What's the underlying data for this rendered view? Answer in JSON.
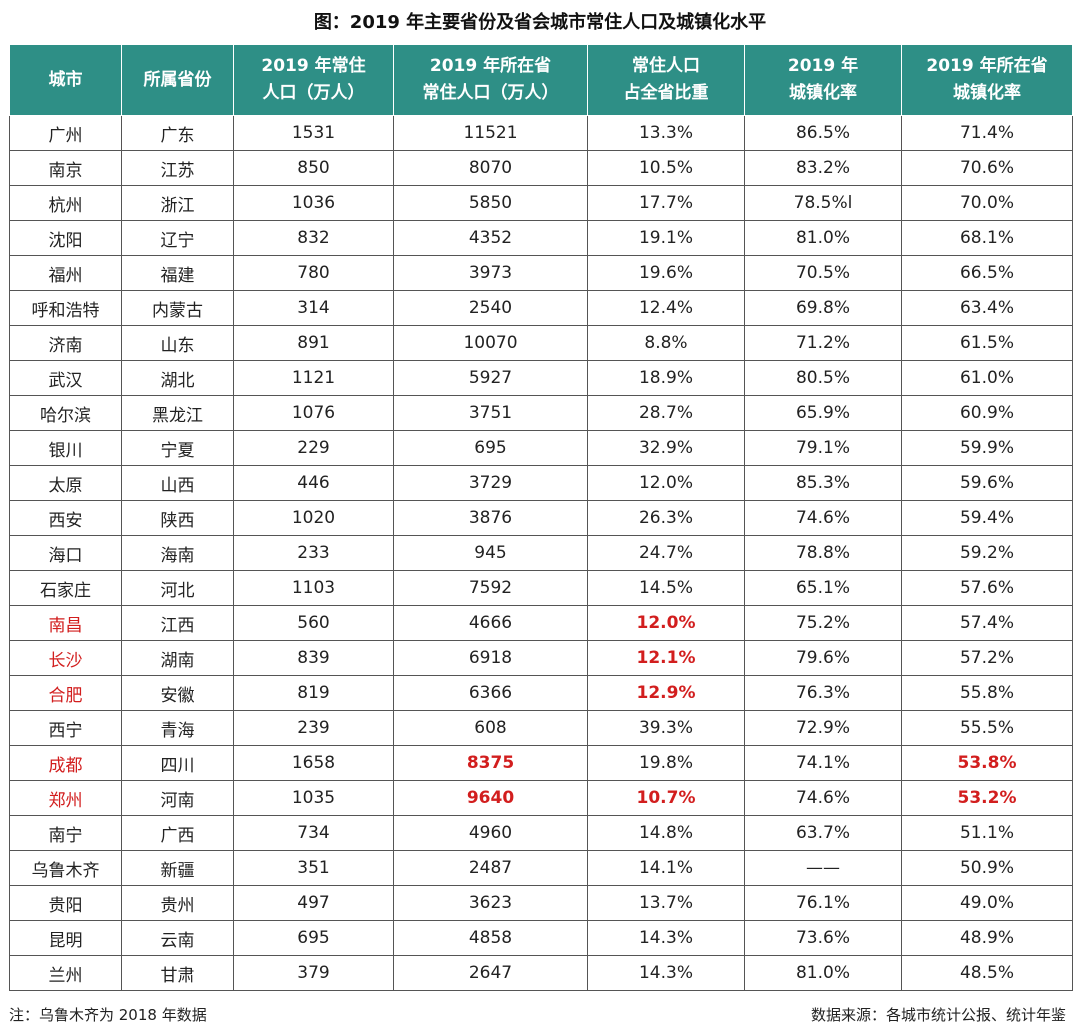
{
  "title": "图：2019 年主要省份及省会城市常住人口及城镇化水平",
  "headers": [
    {
      "l1": "城市",
      "l2": ""
    },
    {
      "l1": "所属省份",
      "l2": ""
    },
    {
      "l1": "2019 年常住",
      "l2": "人口（万人）"
    },
    {
      "l1": "2019 年所在省",
      "l2": "常住人口（万人）"
    },
    {
      "l1": "常住人口",
      "l2": "占全省比重"
    },
    {
      "l1": "2019 年",
      "l2": "城镇化率"
    },
    {
      "l1": "2019 年所在省",
      "l2": "城镇化率"
    }
  ],
  "highlight_color": "#d21e1e",
  "header_color": "#2e8f86",
  "rows": [
    {
      "cells": [
        "广州",
        "广东",
        "1531",
        "11521",
        "13.3%",
        "86.5%",
        "71.4%"
      ]
    },
    {
      "cells": [
        "南京",
        "江苏",
        "850",
        "8070",
        "10.5%",
        "83.2%",
        "70.6%"
      ]
    },
    {
      "cells": [
        "杭州",
        "浙江",
        "1036",
        "5850",
        "17.7%",
        "78.5%l",
        "70.0%"
      ]
    },
    {
      "cells": [
        "沈阳",
        "辽宁",
        "832",
        "4352",
        "19.1%",
        "81.0%",
        "68.1%"
      ]
    },
    {
      "cells": [
        "福州",
        "福建",
        "780",
        "3973",
        "19.6%",
        "70.5%",
        "66.5%"
      ]
    },
    {
      "cells": [
        "呼和浩特",
        "内蒙古",
        "314",
        "2540",
        "12.4%",
        "69.8%",
        "63.4%"
      ]
    },
    {
      "cells": [
        "济南",
        "山东",
        "891",
        "10070",
        "8.8%",
        "71.2%",
        "61.5%"
      ]
    },
    {
      "cells": [
        "武汉",
        "湖北",
        "1121",
        "5927",
        "18.9%",
        "80.5%",
        "61.0%"
      ]
    },
    {
      "cells": [
        "哈尔滨",
        "黑龙江",
        "1076",
        "3751",
        "28.7%",
        "65.9%",
        "60.9%"
      ]
    },
    {
      "cells": [
        "银川",
        "宁夏",
        "229",
        "695",
        "32.9%",
        "79.1%",
        "59.9%"
      ]
    },
    {
      "cells": [
        "太原",
        "山西",
        "446",
        "3729",
        "12.0%",
        "85.3%",
        "59.6%"
      ]
    },
    {
      "cells": [
        "西安",
        "陕西",
        "1020",
        "3876",
        "26.3%",
        "74.6%",
        "59.4%"
      ]
    },
    {
      "cells": [
        "海口",
        "海南",
        "233",
        "945",
        "24.7%",
        "78.8%",
        "59.2%"
      ]
    },
    {
      "cells": [
        "石家庄",
        "河北",
        "1103",
        "7592",
        "14.5%",
        "65.1%",
        "57.6%"
      ]
    },
    {
      "cells": [
        "南昌",
        "江西",
        "560",
        "4666",
        "12.0%",
        "75.2%",
        "57.4%"
      ],
      "red": [
        0
      ],
      "redbold": [
        4
      ]
    },
    {
      "cells": [
        "长沙",
        "湖南",
        "839",
        "6918",
        "12.1%",
        "79.6%",
        "57.2%"
      ],
      "red": [
        0
      ],
      "redbold": [
        4
      ]
    },
    {
      "cells": [
        "合肥",
        "安徽",
        "819",
        "6366",
        "12.9%",
        "76.3%",
        "55.8%"
      ],
      "red": [
        0
      ],
      "redbold": [
        4
      ]
    },
    {
      "cells": [
        "西宁",
        "青海",
        "239",
        "608",
        "39.3%",
        "72.9%",
        "55.5%"
      ]
    },
    {
      "cells": [
        "成都",
        "四川",
        "1658",
        "8375",
        "19.8%",
        "74.1%",
        "53.8%"
      ],
      "red": [
        0
      ],
      "redbold": [
        3,
        6
      ]
    },
    {
      "cells": [
        "郑州",
        "河南",
        "1035",
        "9640",
        "10.7%",
        "74.6%",
        "53.2%"
      ],
      "red": [
        0
      ],
      "redbold": [
        3,
        4,
        6
      ]
    },
    {
      "cells": [
        "南宁",
        "广西",
        "734",
        "4960",
        "14.8%",
        "63.7%",
        "51.1%"
      ]
    },
    {
      "cells": [
        "乌鲁木齐",
        "新疆",
        "351",
        "2487",
        "14.1%",
        "——",
        "50.9%"
      ]
    },
    {
      "cells": [
        "贵阳",
        "贵州",
        "497",
        "3623",
        "13.7%",
        "76.1%",
        "49.0%"
      ]
    },
    {
      "cells": [
        "昆明",
        "云南",
        "695",
        "4858",
        "14.3%",
        "73.6%",
        "48.9%"
      ]
    },
    {
      "cells": [
        "兰州",
        "甘肃",
        "379",
        "2647",
        "14.3%",
        "81.0%",
        "48.5%"
      ]
    }
  ],
  "footer": {
    "note": "注：乌鲁木齐为 2018 年数据",
    "source": "数据来源：各城市统计公报、统计年鉴"
  }
}
